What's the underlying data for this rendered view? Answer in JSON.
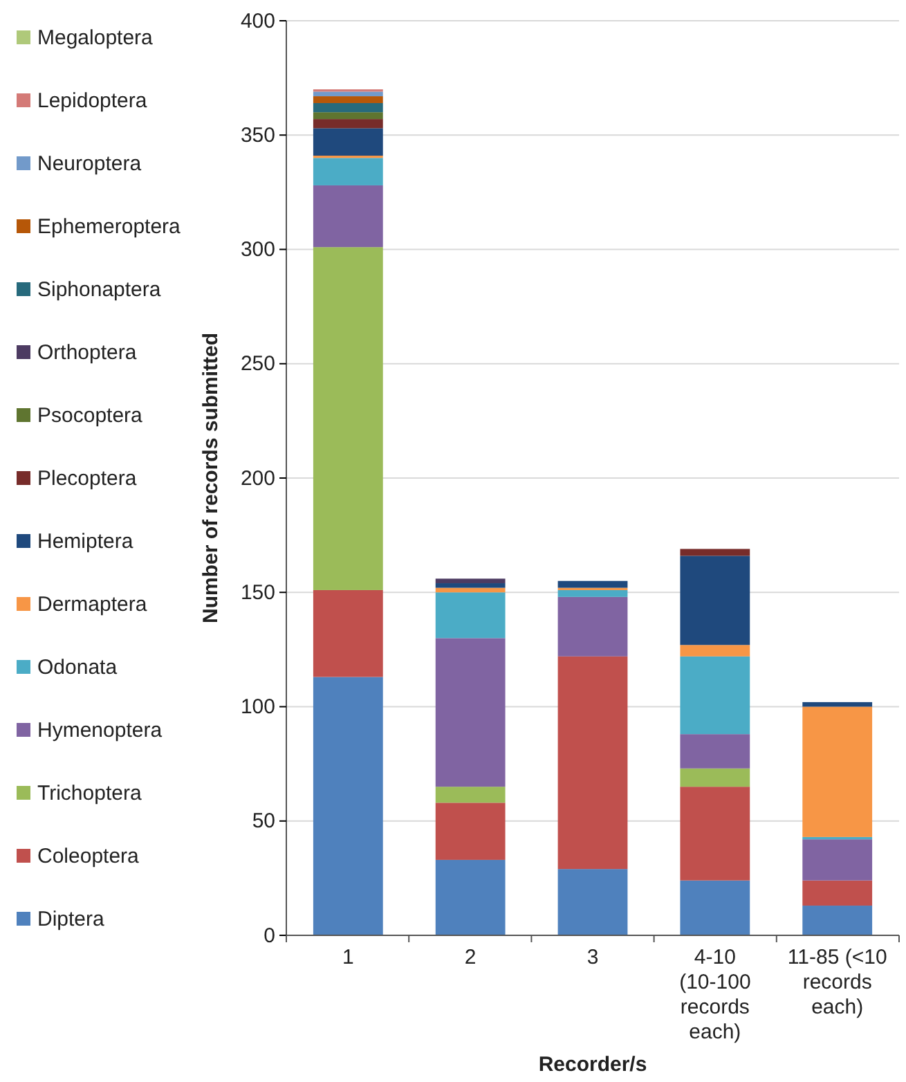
{
  "chart_data": {
    "type": "bar",
    "stacked": true,
    "xlabel": "Recorder/s",
    "ylabel": "Number of records submitted",
    "categories": [
      "1",
      "2",
      "3",
      "4-10 (10-100 records each)",
      "11-85 (<10 records each)"
    ],
    "ylim": [
      0,
      400
    ],
    "yticks": [
      0,
      50,
      100,
      150,
      200,
      250,
      300,
      350,
      400
    ],
    "grid": "y",
    "legend": "left",
    "series": [
      {
        "name": "Diptera",
        "color": "#4f81bd",
        "values": [
          113,
          33,
          29,
          24,
          13
        ]
      },
      {
        "name": "Coleoptera",
        "color": "#c0504d",
        "values": [
          38,
          25,
          93,
          41,
          11
        ]
      },
      {
        "name": "Trichoptera",
        "color": "#9bbb59",
        "values": [
          150,
          7,
          0,
          8,
          0
        ]
      },
      {
        "name": "Hymenoptera",
        "color": "#8064a2",
        "values": [
          27,
          65,
          26,
          15,
          18
        ]
      },
      {
        "name": "Odonata",
        "color": "#4bacc6",
        "values": [
          12,
          20,
          3,
          34,
          1
        ]
      },
      {
        "name": "Dermaptera",
        "color": "#f79646",
        "values": [
          1,
          2,
          1,
          5,
          57
        ]
      },
      {
        "name": "Hemiptera",
        "color": "#1f497d",
        "values": [
          12,
          2,
          3,
          39,
          2
        ]
      },
      {
        "name": "Plecoptera",
        "color": "#772c2a",
        "values": [
          4,
          0,
          0,
          3,
          0
        ]
      },
      {
        "name": "Psocoptera",
        "color": "#5f7530",
        "values": [
          3,
          0,
          0,
          0,
          0
        ]
      },
      {
        "name": "Orthoptera",
        "color": "#4d3b62",
        "values": [
          0,
          2,
          0,
          0,
          0
        ]
      },
      {
        "name": "Siphonaptera",
        "color": "#276a7c",
        "values": [
          4,
          0,
          0,
          0,
          0
        ]
      },
      {
        "name": "Ephemeroptera",
        "color": "#b65708",
        "values": [
          3,
          0,
          0,
          0,
          0
        ]
      },
      {
        "name": "Neuroptera",
        "color": "#729aca",
        "values": [
          2,
          0,
          0,
          0,
          0
        ]
      },
      {
        "name": "Lepidoptera",
        "color": "#d47a77",
        "values": [
          1,
          0,
          0,
          0,
          0
        ]
      },
      {
        "name": "Megaloptera",
        "color": "#afc97a",
        "values": [
          0,
          0,
          0,
          0,
          0
        ]
      }
    ]
  }
}
